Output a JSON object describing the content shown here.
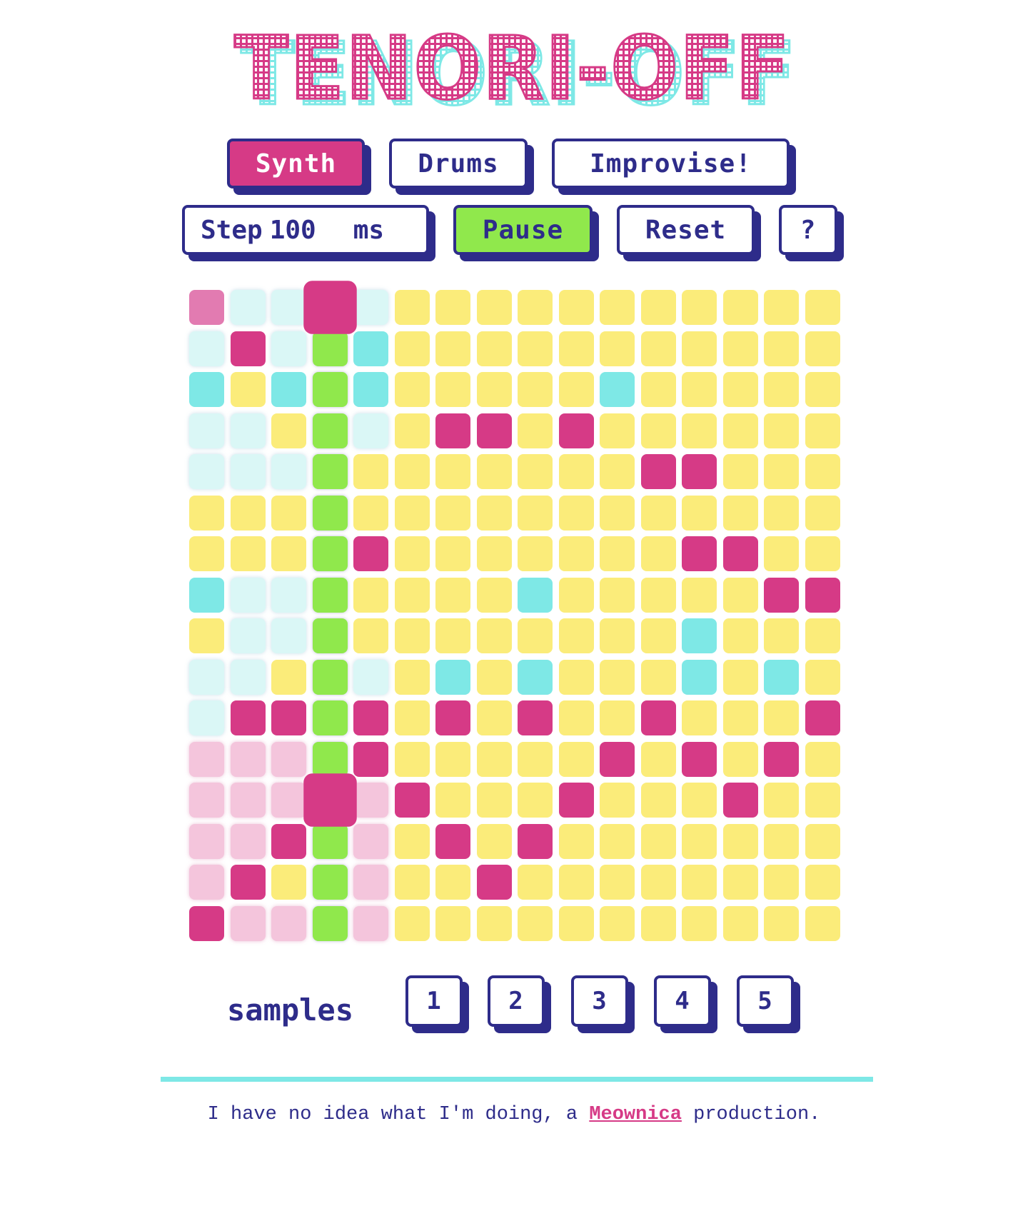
{
  "title": "TENORI-OFF",
  "modes": {
    "synth_label": "Synth",
    "drums_label": "Drums",
    "improvise_label": "Improvise!"
  },
  "controls": {
    "step_label": "Step",
    "step_value": "100",
    "step_unit": "ms",
    "pause_label": "Pause",
    "reset_label": "Reset",
    "help_label": "?"
  },
  "grid": {
    "rows": [
      "mp lc lc big lc y y y y y y y y y y y",
      "lc p lc g c y y y y y y y y y y y",
      "c y c g c y y y y y c y y y y y",
      "lc lc y g lc y p p y p y y y y y y",
      "lc lc lc g y y y y y y y p p y y y",
      "y y y g y y y y y y y y y y y y",
      "y y y g p y y y y y y y p p y y",
      "c lc lc g y y y y c y y y y y p p",
      "y lc lc g y y y y y y y y c y y y",
      "lc lc y g lc y c y c y y y c y c y",
      "lc p p g p y p y p y y p y y y p",
      "lp lp lp g p y y y y y p y p y p y",
      "lp lp lp big lp p y y y p y y y p y y",
      "lp lp p g lp y p y p y y y y y y y",
      "lp p y g lp y y p y y y y y y y y",
      "p lp lp g lp y y y y y y y y y y y"
    ],
    "colors": {
      "y": "#fbec7a",
      "p": "#d63a86",
      "c": "#7ee8e6",
      "lc": "#daf7f6",
      "lp": "#f4c5dc",
      "g": "#90e84c",
      "mp": "#e27bb1",
      "big": "#d63a86"
    }
  },
  "samples": {
    "label": "samples",
    "items": [
      "1",
      "2",
      "3",
      "4",
      "5"
    ]
  },
  "footer": {
    "text_before": "I have no idea what I'm doing, a ",
    "link_text": "Meownica",
    "text_after": " production."
  },
  "palette": {
    "navy": "#2e2c8a",
    "pink": "#d63a86",
    "cyan": "#7ee8e6",
    "yellow": "#fbec7a",
    "green": "#90e84c"
  }
}
